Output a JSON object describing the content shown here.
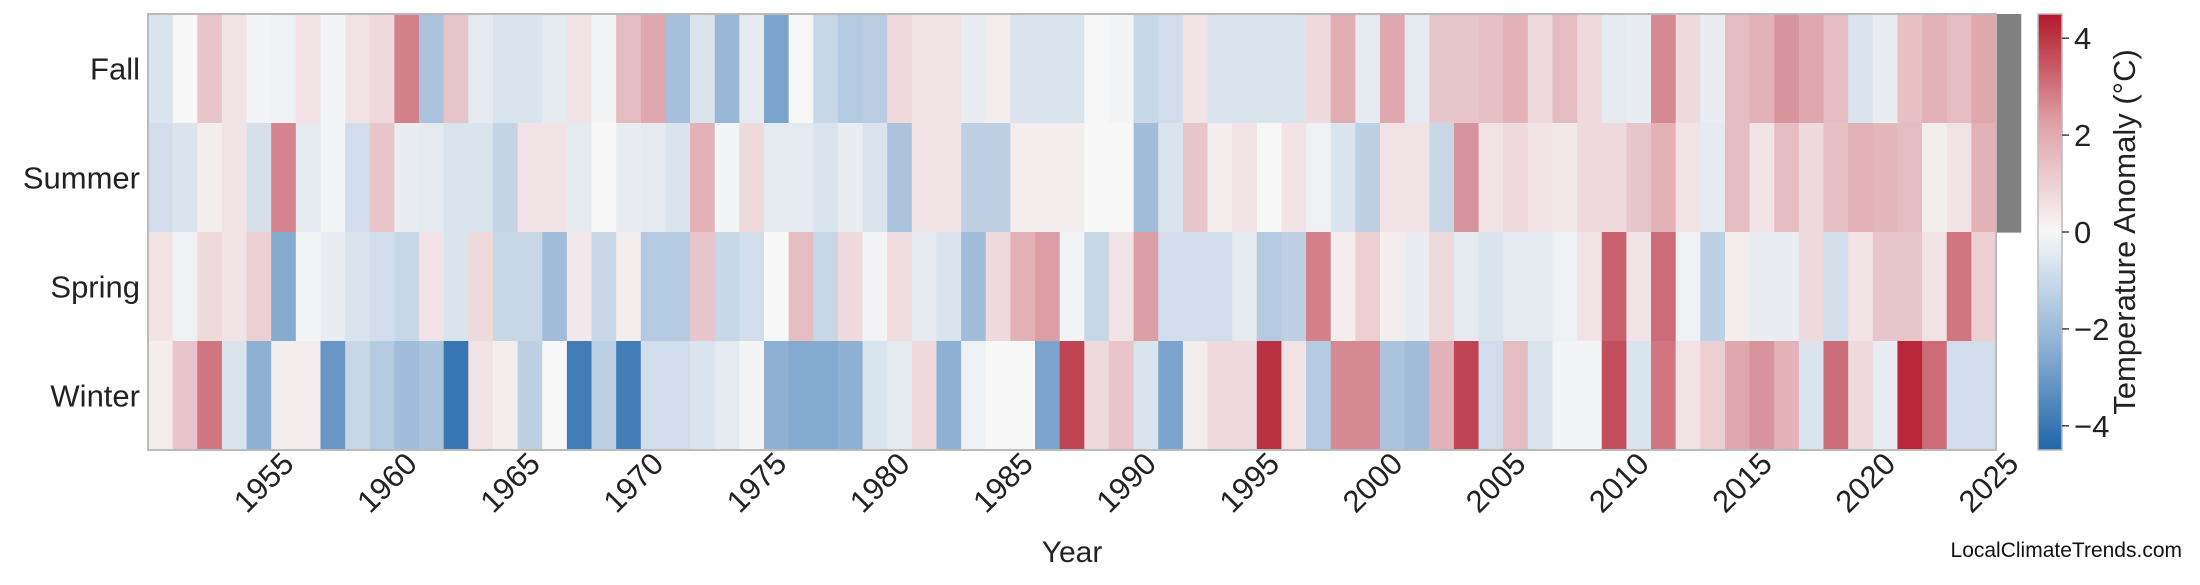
{
  "chart_data": {
    "type": "heatmap",
    "xlabel": "Year",
    "colorbar_label": "Temperature Anomaly (°C)",
    "x_start": 1951,
    "x_end": 2025,
    "x_ticks": [
      1955,
      1960,
      1965,
      1970,
      1975,
      1980,
      1985,
      1990,
      1995,
      2000,
      2005,
      2010,
      2015,
      2020,
      2025
    ],
    "rows": [
      "Fall",
      "Summer",
      "Spring",
      "Winter"
    ],
    "value_range": [
      -4.5,
      4.5
    ],
    "colorbar_ticks": [
      4,
      2,
      0,
      -2,
      -4
    ],
    "missing_color": "#808080",
    "colorscale": [
      "#2166ac",
      "#f7f7f7",
      "#b2182b"
    ],
    "values": {
      "Fall": [
        -0.6,
        0.0,
        1.0,
        0.4,
        -0.1,
        -0.2,
        0.4,
        -0.1,
        0.4,
        0.6,
        2.4,
        -1.6,
        1.0,
        -0.4,
        -0.6,
        -0.6,
        -0.4,
        0.4,
        -0.1,
        1.2,
        1.6,
        -1.7,
        -0.6,
        -2.0,
        -0.4,
        -2.6,
        0.0,
        -1.0,
        -1.4,
        -1.3,
        0.6,
        0.4,
        0.4,
        -0.3,
        0.2,
        -0.6,
        -0.6,
        -0.6,
        0.0,
        -0.1,
        -1.0,
        -0.8,
        0.4,
        -0.6,
        -0.6,
        -0.6,
        -0.6,
        0.6,
        1.5,
        -0.4,
        1.6,
        -0.4,
        1.0,
        1.0,
        1.1,
        1.4,
        0.6,
        1.2,
        0.6,
        -0.4,
        -0.3,
        2.2,
        0.6,
        -0.3,
        1.2,
        1.4,
        2.0,
        1.6,
        1.2,
        -0.6,
        -0.3,
        1.1,
        1.4,
        1.2,
        1.6,
        null
      ],
      "Summer": [
        -0.8,
        -0.6,
        0.2,
        0.4,
        -0.7,
        2.3,
        -0.4,
        -0.1,
        -0.8,
        1.0,
        -0.3,
        -0.4,
        -0.6,
        -0.6,
        -1.1,
        0.4,
        0.4,
        -0.4,
        0.0,
        -0.3,
        -0.4,
        -0.6,
        1.4,
        -0.1,
        0.6,
        -0.4,
        -0.4,
        -0.6,
        -0.3,
        -0.6,
        -1.6,
        0.4,
        0.4,
        -1.2,
        -1.2,
        0.2,
        0.2,
        0.2,
        0.0,
        0.0,
        -1.8,
        -0.6,
        1.0,
        0.2,
        0.4,
        0.0,
        0.4,
        -0.2,
        -0.6,
        -1.2,
        0.4,
        0.4,
        -1.0,
        2.0,
        0.4,
        0.6,
        0.4,
        0.3,
        0.6,
        0.6,
        1.0,
        1.4,
        0.4,
        -0.4,
        1.2,
        0.4,
        1.2,
        0.6,
        1.1,
        1.4,
        1.3,
        1.2,
        0.2,
        0.4,
        1.4,
        null
      ],
      "Spring": [
        0.4,
        -0.2,
        0.6,
        0.4,
        0.8,
        -2.4,
        -0.1,
        -0.3,
        -0.6,
        -0.8,
        -1.0,
        0.4,
        -0.6,
        0.6,
        -1.0,
        -1.0,
        -1.8,
        0.3,
        -1.0,
        0.2,
        -1.4,
        -1.4,
        1.0,
        -1.0,
        -0.8,
        0.0,
        1.2,
        -1.0,
        0.6,
        -0.1,
        0.5,
        -0.4,
        -0.6,
        -1.8,
        0.6,
        1.4,
        1.8,
        -0.1,
        -1.0,
        0.4,
        1.8,
        -0.8,
        -0.8,
        -0.8,
        -0.4,
        -1.4,
        -1.2,
        2.4,
        0.2,
        0.8,
        0.2,
        -0.3,
        0.6,
        -0.4,
        -0.6,
        -0.4,
        -0.4,
        -0.2,
        0.4,
        3.0,
        0.4,
        2.8,
        -0.2,
        -1.2,
        0.2,
        -0.3,
        -0.3,
        0.6,
        -0.8,
        0.4,
        1.0,
        1.0,
        0.4,
        2.6,
        0.8
      ],
      "Winter": [
        0.2,
        1.0,
        2.6,
        -0.6,
        -2.2,
        0.2,
        0.2,
        -3.0,
        -1.0,
        -1.4,
        -1.8,
        -1.6,
        -4.0,
        0.4,
        0.2,
        -1.2,
        0.0,
        -3.8,
        -1.2,
        -3.8,
        -0.8,
        -0.8,
        -0.6,
        -0.4,
        -0.1,
        -2.2,
        -2.4,
        -2.4,
        -2.2,
        -0.6,
        -0.4,
        0.6,
        -2.2,
        -0.2,
        0.0,
        0.0,
        -2.6,
        3.6,
        0.6,
        1.0,
        -0.6,
        -2.6,
        0.2,
        0.6,
        0.6,
        4.0,
        0.4,
        -1.4,
        2.2,
        2.2,
        -1.6,
        -1.8,
        1.4,
        3.6,
        -0.8,
        1.2,
        -0.6,
        -0.1,
        -0.1,
        3.4,
        -0.6,
        2.6,
        0.4,
        0.8,
        1.6,
        2.0,
        1.4,
        -0.6,
        2.8,
        0.6,
        -0.3,
        4.2,
        2.8,
        -0.8,
        -0.8
      ]
    }
  },
  "watermark": "LocalClimateTrends.com"
}
